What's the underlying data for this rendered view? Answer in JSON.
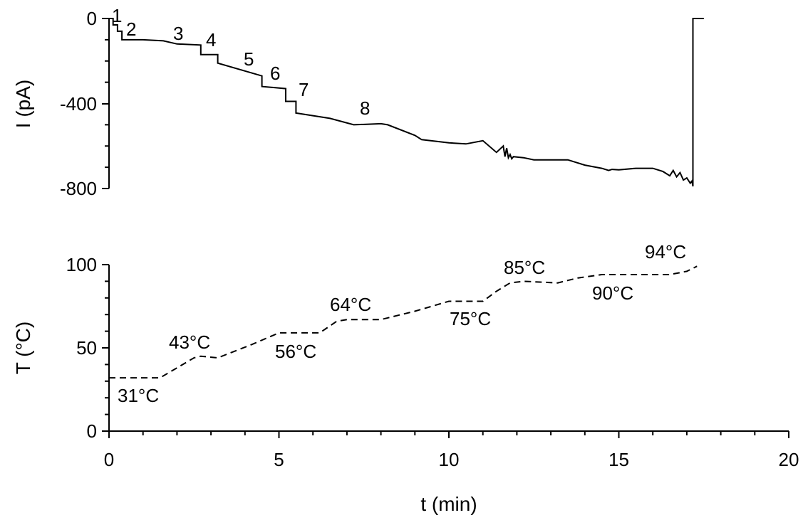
{
  "chart_data": [
    {
      "type": "line",
      "title": "",
      "xlabel": "",
      "ylabel": "I (pA)",
      "xlim": [
        0,
        20
      ],
      "ylim": [
        -800,
        0
      ],
      "yticks": [
        0,
        -400,
        -800
      ],
      "grid": false,
      "legend": "none",
      "series": [
        {
          "style": "solid",
          "color": "#000000",
          "x": [
            0,
            0.12,
            0.12,
            0.25,
            0.25,
            0.38,
            0.38,
            1.0,
            1.6,
            2.0,
            2.7,
            2.7,
            3.2,
            3.2,
            4.5,
            4.5,
            5.2,
            5.2,
            5.5,
            5.5,
            6.5,
            7.2,
            8.0,
            8.2,
            9.0,
            9.2,
            10.0,
            10.5,
            11.0,
            11.4,
            11.6,
            11.65,
            11.7,
            11.75,
            11.8,
            11.85,
            11.9,
            12.2,
            12.5,
            13.0,
            13.5,
            14.0,
            14.5,
            14.7,
            14.8,
            15.0,
            15.5,
            16.0,
            16.3,
            16.5,
            16.6,
            16.7,
            16.8,
            16.9,
            17.0,
            17.1,
            17.15,
            17.18,
            17.18,
            17.5
          ],
          "y": [
            0,
            0,
            -30,
            -30,
            -60,
            -60,
            -100,
            -100,
            -105,
            -120,
            -125,
            -170,
            -170,
            -210,
            -270,
            -320,
            -330,
            -390,
            -390,
            -445,
            -470,
            -500,
            -495,
            -500,
            -550,
            -570,
            -585,
            -590,
            -575,
            -630,
            -600,
            -650,
            -610,
            -655,
            -640,
            -660,
            -650,
            -655,
            -665,
            -665,
            -665,
            -690,
            -705,
            -715,
            -710,
            -712,
            -705,
            -705,
            -720,
            -740,
            -715,
            -745,
            -725,
            -760,
            -750,
            -775,
            -765,
            -790,
            0,
            0
          ]
        }
      ],
      "annotations": [
        "1",
        "2",
        "3",
        "4",
        "5",
        "6",
        "7",
        "8"
      ]
    },
    {
      "type": "line",
      "title": "",
      "xlabel": "t (min)",
      "ylabel": "T (°C)",
      "xlim": [
        0,
        20
      ],
      "ylim": [
        0,
        100
      ],
      "yticks": [
        0,
        50,
        100
      ],
      "xticks": [
        0,
        5,
        10,
        15,
        20
      ],
      "grid": false,
      "legend": "none",
      "series": [
        {
          "style": "dashed",
          "color": "#000000",
          "x": [
            0,
            1.5,
            2.0,
            2.5,
            2.7,
            3.2,
            4.2,
            5.0,
            5.3,
            6.2,
            6.7,
            7.0,
            8.0,
            9.0,
            10.0,
            11.0,
            11.4,
            11.8,
            12.2,
            13.2,
            13.8,
            14.5,
            15.0,
            16.5,
            17.0,
            17.3
          ],
          "y": [
            32,
            32,
            38,
            44,
            45,
            44,
            52,
            59,
            59,
            59,
            66,
            67,
            67,
            72,
            78,
            78,
            84,
            89,
            90,
            89,
            92,
            94,
            94,
            94,
            96,
            99
          ]
        }
      ],
      "annotations": [
        "31°C",
        "43°C",
        "56°C",
        "64°C",
        "75°C",
        "85°C",
        "90°C",
        "94°C"
      ]
    }
  ],
  "tick_labels": {
    "x": [
      "0",
      "5",
      "10",
      "15",
      "20"
    ],
    "top_y": [
      "0",
      "-400",
      "-800"
    ],
    "bottom_y": [
      "100",
      "50",
      "0"
    ]
  }
}
